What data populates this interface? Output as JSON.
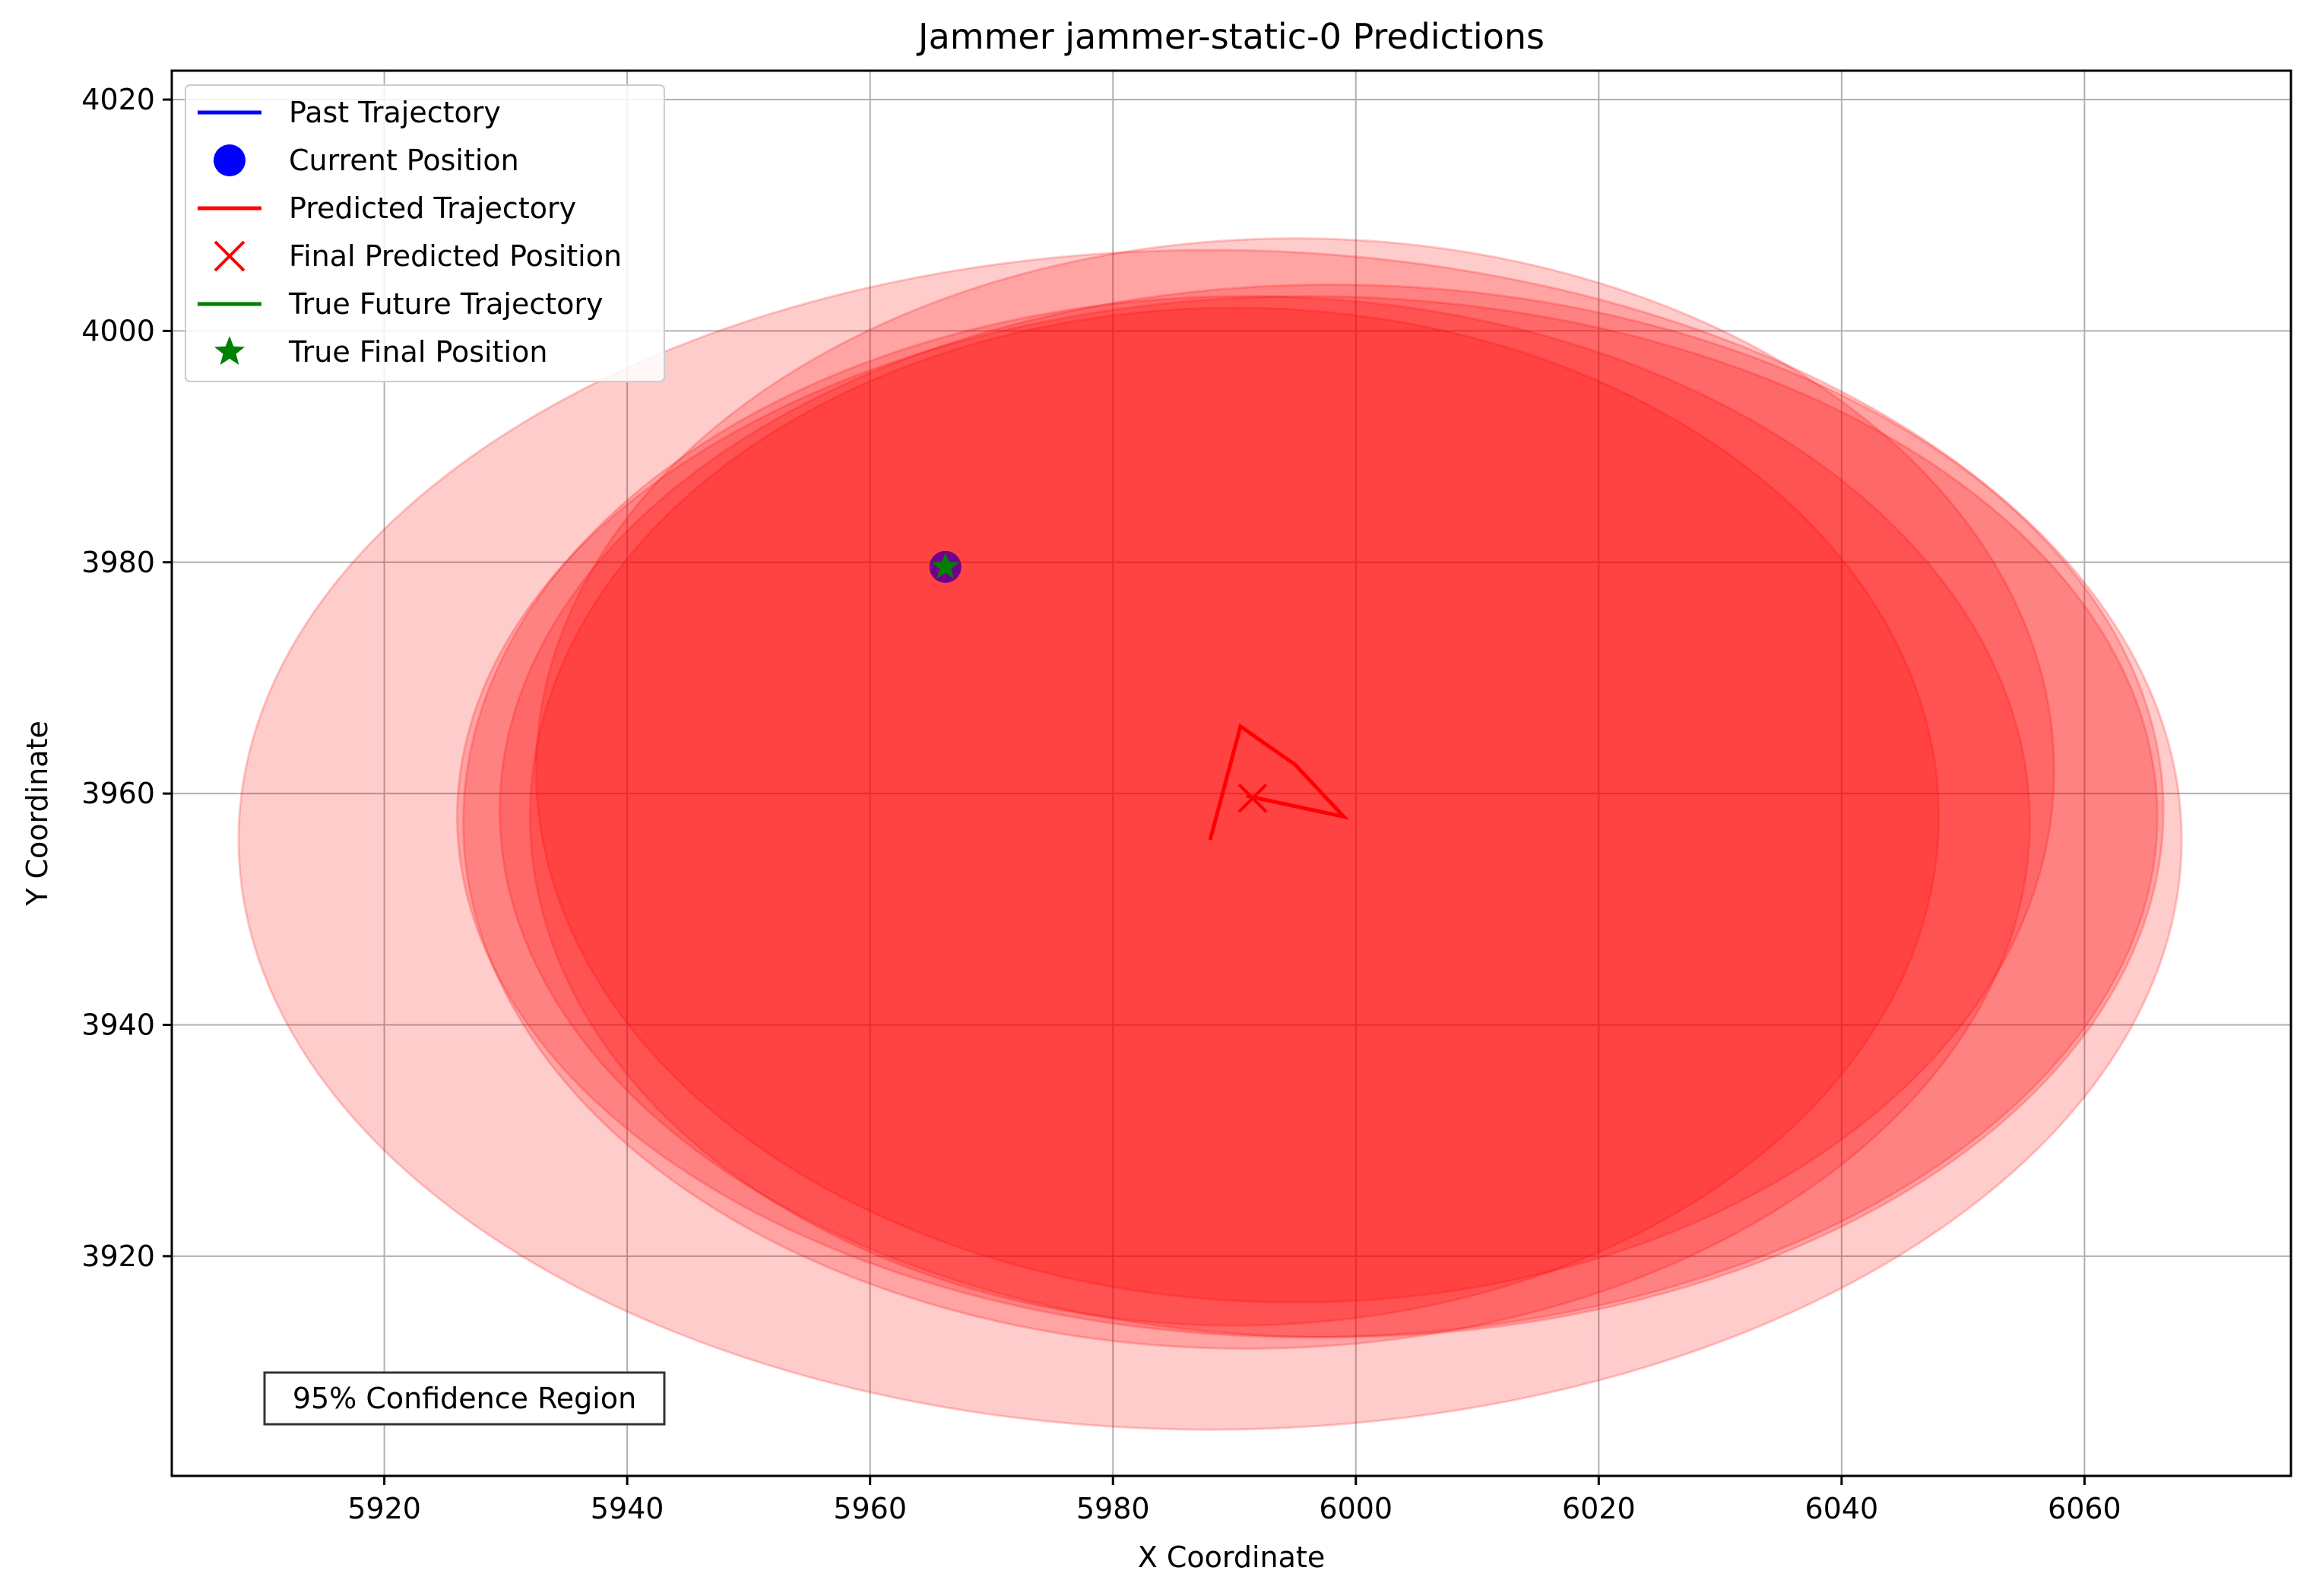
{
  "chart_data": {
    "type": "scatter",
    "title": "Jammer jammer-static-0 Predictions",
    "xlabel": "X Coordinate",
    "ylabel": "Y Coordinate",
    "xlim": [
      5902.5,
      6077.0
    ],
    "ylim": [
      3901.0,
      4022.5
    ],
    "xticks": [
      5920,
      5940,
      5960,
      5980,
      6000,
      6020,
      6040,
      6060
    ],
    "yticks": [
      3920,
      3940,
      3960,
      3980,
      4000,
      4020
    ],
    "grid": true,
    "legend_position": "top-left",
    "colors": {
      "past": "#0000ff",
      "predicted": "#ff0000",
      "true": "#008000",
      "confidence_fill": "#ff0000",
      "grid": "#b0b0b0"
    },
    "legend": [
      {
        "label": "Past Trajectory",
        "marker": "line",
        "color": "#0000ff"
      },
      {
        "label": "Current Position",
        "marker": "circle",
        "color": "#0000ff"
      },
      {
        "label": "Predicted Trajectory",
        "marker": "line",
        "color": "#ff0000"
      },
      {
        "label": "Final Predicted Position",
        "marker": "x",
        "color": "#ff0000"
      },
      {
        "label": "True Future Trajectory",
        "marker": "line",
        "color": "#008000"
      },
      {
        "label": "True Final Position",
        "marker": "star",
        "color": "#008000"
      }
    ],
    "past_trajectory": [
      [
        5966.2,
        3979.6
      ]
    ],
    "current_position": [
      5966.2,
      3979.6
    ],
    "true_future_trajectory": [
      [
        5966.2,
        3979.6
      ]
    ],
    "true_final_position": [
      5966.2,
      3979.6
    ],
    "predicted_trajectory": [
      [
        5988.0,
        3956.0
      ],
      [
        5990.5,
        3965.8
      ],
      [
        5995.0,
        3962.5
      ],
      [
        5999.0,
        3958.0
      ],
      [
        5991.0,
        3959.8
      ]
    ],
    "final_predicted_position": [
      5991.5,
      3959.6
    ],
    "confidence_ellipses": [
      {
        "cx": 5988.0,
        "cy": 3956.0,
        "rx": 80.0,
        "ry": 51.0
      },
      {
        "cx": 5995.0,
        "cy": 3962.0,
        "rx": 62.5,
        "ry": 46.0
      },
      {
        "cx": 5998.0,
        "cy": 3958.5,
        "rx": 68.5,
        "ry": 45.5
      },
      {
        "cx": 5996.0,
        "cy": 3958.0,
        "rx": 70.0,
        "ry": 45.0
      },
      {
        "cx": 5991.0,
        "cy": 3957.5,
        "rx": 64.5,
        "ry": 45.5
      },
      {
        "cx": 5990.0,
        "cy": 3958.0,
        "rx": 58.0,
        "ry": 44.0
      }
    ],
    "confidence_ellipse_opacity": [
      0.2,
      0.2,
      0.2,
      0.2,
      0.2,
      0.2
    ],
    "annotation": "95% Confidence Region"
  }
}
